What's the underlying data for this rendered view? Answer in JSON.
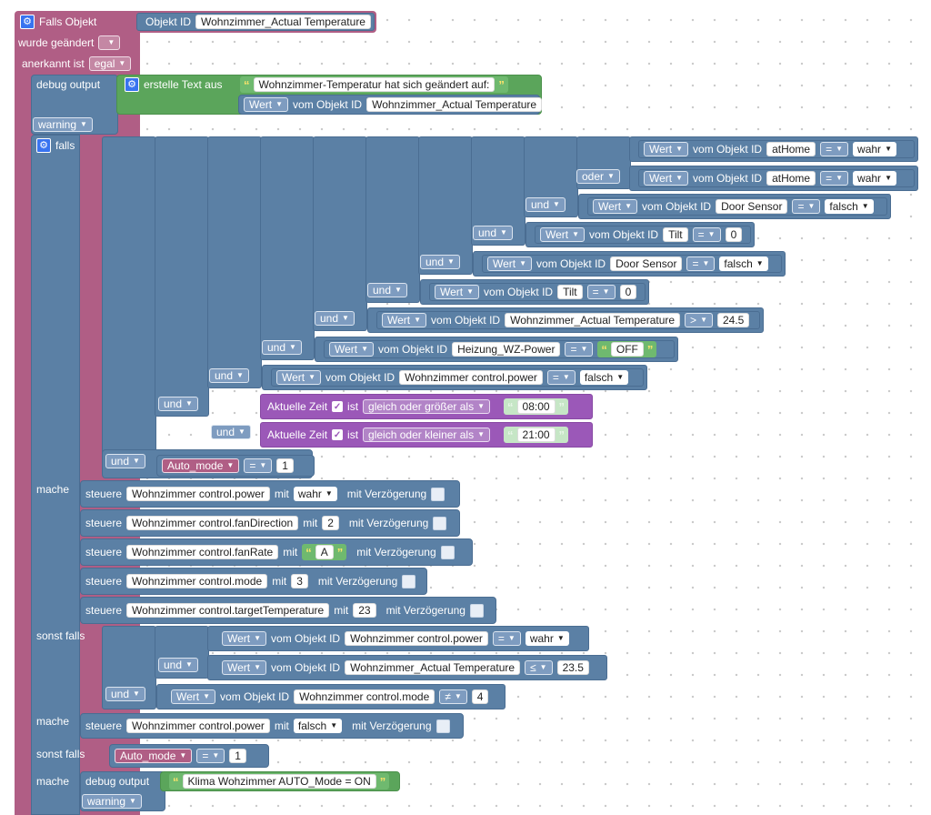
{
  "trigger": {
    "falls_objekt": "Falls Objekt",
    "objekt_id": "Objekt ID",
    "objekt_id_value": "Wohnzimmer_Actual Temperature",
    "wurde": "wurde geändert",
    "anerkannt_label": "anerkannt ist",
    "anerkannt_value": "egal"
  },
  "debug1": {
    "label": "debug output",
    "erstelle": "erstelle Text aus",
    "text1": "Wohnzimmer-Temperatur hat sich geändert auf:",
    "wert": "Wert",
    "vom_objekt_id": "vom Objekt ID",
    "objekt": "Wohnzimmer_Actual Temperature",
    "level": "warning"
  },
  "falls_label": "falls",
  "and_rows": [
    {
      "op": "",
      "wert": "Wert",
      "vom": "vom Objekt ID",
      "obj": "atHome",
      "cmp": "=",
      "val": "wahr",
      "valtype": "dd"
    },
    {
      "op": "oder",
      "wert": "Wert",
      "vom": "vom Objekt ID",
      "obj": "atHome",
      "cmp": "=",
      "val": "wahr",
      "valtype": "dd"
    },
    {
      "op": "und",
      "wert": "Wert",
      "vom": "vom Objekt ID",
      "obj": "Door Sensor",
      "cmp": "=",
      "val": "falsch",
      "valtype": "dd"
    },
    {
      "op": "und",
      "wert": "Wert",
      "vom": "vom Objekt ID",
      "obj": "Tilt",
      "cmp": "=",
      "val": "0",
      "valtype": "num"
    },
    {
      "op": "und",
      "wert": "Wert",
      "vom": "vom Objekt ID",
      "obj": "Door Sensor",
      "cmp": "=",
      "val": "falsch",
      "valtype": "dd"
    },
    {
      "op": "und",
      "wert": "Wert",
      "vom": "vom Objekt ID",
      "obj": "Tilt",
      "cmp": "=",
      "val": "0",
      "valtype": "num"
    },
    {
      "op": "und",
      "wert": "Wert",
      "vom": "vom Objekt ID",
      "obj": "Wohnzimmer_Actual Temperature",
      "cmp": ">",
      "val": "24.5",
      "valtype": "num"
    },
    {
      "op": "und",
      "wert": "Wert",
      "vom": "vom Objekt ID",
      "obj": "Heizung_WZ-Power",
      "cmp": "=",
      "val": "OFF",
      "valtype": "str"
    },
    {
      "op": "und",
      "wert": "Wert",
      "vom": "vom Objekt ID",
      "obj": "Wohnzimmer control.power",
      "cmp": "=",
      "val": "falsch",
      "valtype": "dd"
    }
  ],
  "time_rows": [
    {
      "op": "und",
      "label": "Aktuelle Zeit",
      "ist": "ist",
      "mode": "gleich oder größer als",
      "time": "08:00"
    },
    {
      "op": "und",
      "label": "Aktuelle Zeit",
      "ist": "ist",
      "mode": "gleich oder kleiner als",
      "time": "21:00"
    }
  ],
  "auto_row": {
    "op": "und",
    "var": "Auto_mode",
    "cmp": "=",
    "val": "1"
  },
  "mache1": {
    "label": "mache",
    "rows": [
      {
        "steuere": "steuere",
        "obj": "Wohnzimmer control.power",
        "mit": "mit",
        "val": "wahr",
        "valtype": "dd",
        "delay": "mit Verzögerung"
      },
      {
        "steuere": "steuere",
        "obj": "Wohnzimmer control.fanDirection",
        "mit": "mit",
        "val": "2",
        "valtype": "num",
        "delay": "mit Verzögerung"
      },
      {
        "steuere": "steuere",
        "obj": "Wohnzimmer control.fanRate",
        "mit": "mit",
        "val": "A",
        "valtype": "str",
        "delay": "mit Verzögerung"
      },
      {
        "steuere": "steuere",
        "obj": "Wohnzimmer control.mode",
        "mit": "mit",
        "val": "3",
        "valtype": "num",
        "delay": "mit Verzögerung"
      },
      {
        "steuere": "steuere",
        "obj": "Wohnzimmer control.targetTemperature",
        "mit": "mit",
        "val": "23",
        "valtype": "num",
        "delay": "mit Verzögerung"
      }
    ]
  },
  "sonst1": {
    "label": "sonst falls",
    "rows": [
      {
        "op": "",
        "wert": "Wert",
        "vom": "vom Objekt ID",
        "obj": "Wohnzimmer control.power",
        "cmp": "=",
        "val": "wahr",
        "valtype": "dd"
      },
      {
        "op": "und",
        "wert": "Wert",
        "vom": "vom Objekt ID",
        "obj": "Wohnzimmer_Actual Temperature",
        "cmp": "≤",
        "val": "23.5",
        "valtype": "num"
      },
      {
        "op": "und",
        "wert": "Wert",
        "vom": "vom Objekt ID",
        "obj": "Wohnzimmer control.mode",
        "cmp": "≠",
        "val": "4",
        "valtype": "num"
      }
    ]
  },
  "mache2": {
    "label": "mache",
    "steuere": "steuere",
    "obj": "Wohnzimmer control.power",
    "mit": "mit",
    "val": "falsch",
    "delay": "mit Verzögerung"
  },
  "sonst2": {
    "label": "sonst falls",
    "var": "Auto_mode",
    "cmp": "=",
    "val": "1"
  },
  "mache3": {
    "label": "mache",
    "debug": "debug output",
    "text": "Klima Wohzimmer AUTO_Mode = ON",
    "level": "warning"
  }
}
